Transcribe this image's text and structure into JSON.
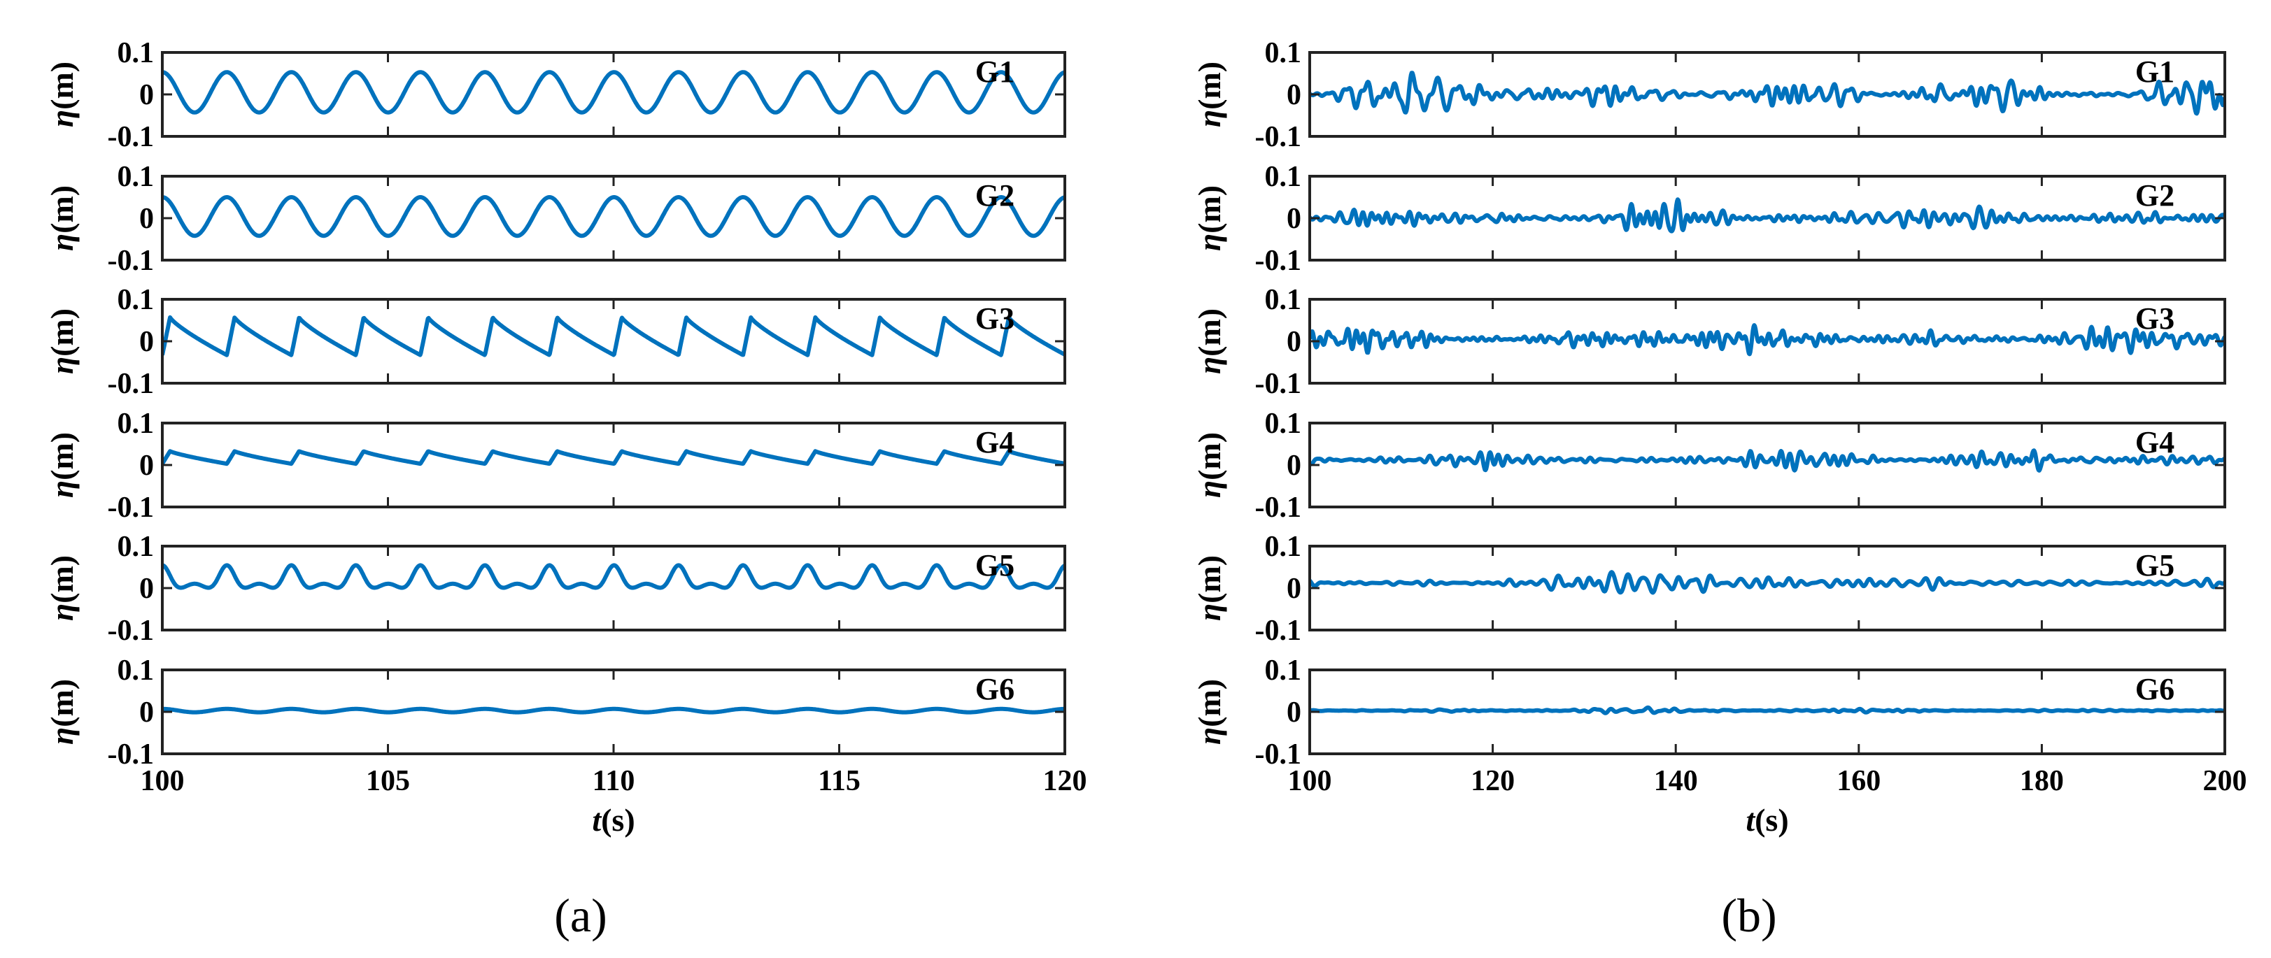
{
  "captions": [
    "(a)",
    "(b)"
  ],
  "chart_data": [
    {
      "type": "line",
      "panel": "a",
      "caption": "(a)",
      "title": "",
      "xlabel_var": "t",
      "xlabel_unit": "(s)",
      "ylabel_var": "η",
      "ylabel_unit": "(m)",
      "xlim": [
        100,
        120
      ],
      "xticks": [
        100,
        105,
        110,
        115,
        120
      ],
      "ylim": [
        -0.1,
        0.1
      ],
      "yticks": [
        0.1,
        0,
        -0.1
      ],
      "ytick_labels": [
        "0.1",
        "0",
        "-0.1"
      ],
      "grid": false,
      "color": "#0072BD",
      "series": [
        {
          "name": "G1",
          "period": 1.43,
          "amplitude": 0.048,
          "offset": 0.005,
          "shape": "regular"
        },
        {
          "name": "G2",
          "period": 1.43,
          "amplitude": 0.046,
          "offset": 0.004,
          "shape": "regular"
        },
        {
          "name": "G3",
          "period": 1.43,
          "amplitude": 0.045,
          "offset": 0.012,
          "shape": "steep-front"
        },
        {
          "name": "G4",
          "period": 1.43,
          "amplitude": 0.015,
          "offset": 0.018,
          "shape": "steep-front"
        },
        {
          "name": "G5",
          "period": 1.43,
          "amplitude": 0.022,
          "offset": 0.018,
          "shape": "peaked"
        },
        {
          "name": "G6",
          "period": 1.43,
          "amplitude": 0.004,
          "offset": 0.003,
          "shape": "regular"
        }
      ]
    },
    {
      "type": "line",
      "panel": "b",
      "caption": "(b)",
      "title": "",
      "xlabel_var": "t",
      "xlabel_unit": "(s)",
      "ylabel_var": "η",
      "ylabel_unit": "(m)",
      "xlim": [
        100,
        200
      ],
      "xticks": [
        100,
        120,
        140,
        160,
        180,
        200
      ],
      "ylim": [
        -0.1,
        0.1
      ],
      "yticks": [
        0.1,
        0,
        -0.1
      ],
      "ytick_labels": [
        "0.1",
        "0",
        "-0.1"
      ],
      "grid": false,
      "color": "#0072BD",
      "series": [
        {
          "name": "G1",
          "amplitude": 0.045,
          "offset": 0.0,
          "shape": "irregular",
          "seed": 11
        },
        {
          "name": "G2",
          "amplitude": 0.035,
          "offset": 0.0,
          "shape": "irregular",
          "seed": 23
        },
        {
          "name": "G3",
          "amplitude": 0.032,
          "offset": 0.005,
          "shape": "irregular",
          "seed": 37
        },
        {
          "name": "G4",
          "amplitude": 0.022,
          "offset": 0.012,
          "shape": "irregular",
          "seed": 41
        },
        {
          "name": "G5",
          "amplitude": 0.024,
          "offset": 0.012,
          "shape": "irregular",
          "seed": 53
        },
        {
          "name": "G6",
          "amplitude": 0.005,
          "offset": 0.003,
          "shape": "irregular",
          "seed": 67
        }
      ]
    }
  ]
}
